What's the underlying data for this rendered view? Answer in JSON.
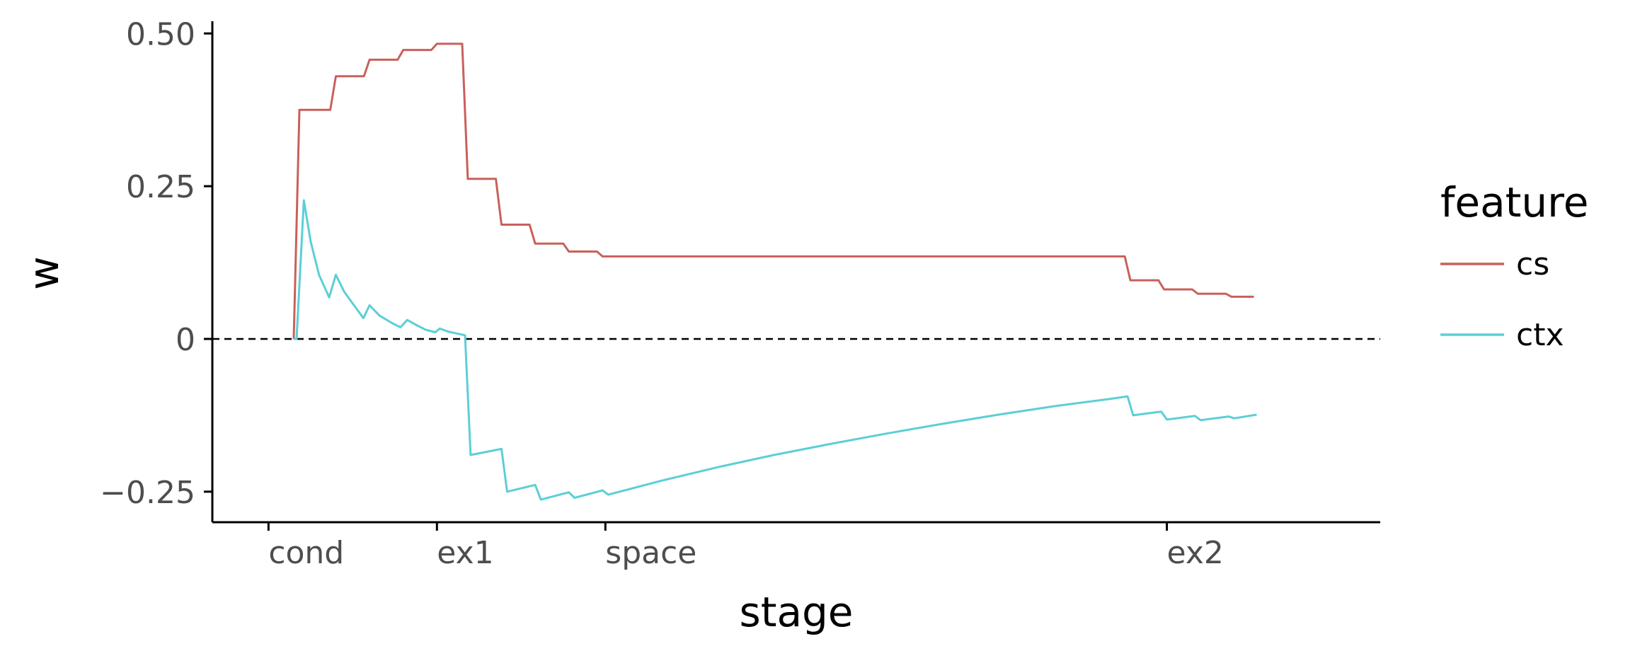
{
  "chart_data": {
    "type": "line",
    "title": "",
    "xlabel": "stage",
    "ylabel": "w",
    "x_ticks": [
      {
        "label": "cond",
        "x": 0
      },
      {
        "label": "ex1",
        "x": 30
      },
      {
        "label": "space",
        "x": 60
      },
      {
        "label": "ex2",
        "x": 160
      }
    ],
    "y_ticks": [
      {
        "label": "0.50",
        "y": 0.5
      },
      {
        "label": "0.25",
        "y": 0.25
      },
      {
        "label": "0",
        "y": 0
      },
      {
        "label": "−0.25",
        "y": -0.25
      }
    ],
    "xlim": [
      -10,
      198
    ],
    "ylim": [
      -0.3,
      0.52
    ],
    "reference_line": {
      "y": 0,
      "style": "dashed"
    },
    "grid": false,
    "legend": {
      "title": "feature",
      "position": "right"
    },
    "series": [
      {
        "name": "cs",
        "color": "#c9605a",
        "points": [
          [
            4.5,
            0
          ],
          [
            5.5,
            0.375
          ],
          [
            11,
            0.375
          ],
          [
            12,
            0.43
          ],
          [
            17,
            0.43
          ],
          [
            18,
            0.457
          ],
          [
            23,
            0.457
          ],
          [
            24,
            0.473
          ],
          [
            29,
            0.473
          ],
          [
            30,
            0.483
          ],
          [
            34.5,
            0.483
          ],
          [
            35.5,
            0.262
          ],
          [
            40.5,
            0.262
          ],
          [
            41.5,
            0.187
          ],
          [
            46.5,
            0.187
          ],
          [
            47.5,
            0.156
          ],
          [
            52.5,
            0.156
          ],
          [
            53.5,
            0.143
          ],
          [
            58.5,
            0.143
          ],
          [
            59.5,
            0.135
          ],
          [
            152.5,
            0.135
          ],
          [
            153.5,
            0.096
          ],
          [
            158.5,
            0.096
          ],
          [
            159.5,
            0.081
          ],
          [
            164.5,
            0.081
          ],
          [
            165.5,
            0.074
          ],
          [
            170.5,
            0.074
          ],
          [
            171.5,
            0.069
          ],
          [
            175.5,
            0.069
          ]
        ]
      },
      {
        "name": "ctx",
        "color": "#5bcfd6",
        "points": [
          [
            4.5,
            0
          ],
          [
            5,
            0
          ],
          [
            6.3,
            0.227
          ],
          [
            7.5,
            0.16
          ],
          [
            9,
            0.105
          ],
          [
            10.8,
            0.068
          ],
          [
            12,
            0.105
          ],
          [
            13.5,
            0.077
          ],
          [
            15,
            0.058
          ],
          [
            16.9,
            0.034
          ],
          [
            18,
            0.055
          ],
          [
            19.8,
            0.038
          ],
          [
            22,
            0.026
          ],
          [
            23.5,
            0.019
          ],
          [
            24.7,
            0.031
          ],
          [
            26.5,
            0.022
          ],
          [
            28,
            0.015
          ],
          [
            29.7,
            0.011
          ],
          [
            30.5,
            0.017
          ],
          [
            32,
            0.012
          ],
          [
            35,
            0.006
          ],
          [
            36,
            -0.19
          ],
          [
            41.5,
            -0.18
          ],
          [
            42.5,
            -0.25
          ],
          [
            47.5,
            -0.239
          ],
          [
            48.5,
            -0.263
          ],
          [
            53.5,
            -0.251
          ],
          [
            54.5,
            -0.26
          ],
          [
            59.5,
            -0.248
          ],
          [
            60.5,
            -0.255
          ],
          [
            70,
            -0.232
          ],
          [
            80,
            -0.21
          ],
          [
            90,
            -0.19
          ],
          [
            100,
            -0.172
          ],
          [
            110,
            -0.155
          ],
          [
            120,
            -0.139
          ],
          [
            130,
            -0.124
          ],
          [
            140,
            -0.11
          ],
          [
            150,
            -0.098
          ],
          [
            153,
            -0.094
          ],
          [
            154,
            -0.125
          ],
          [
            159,
            -0.119
          ],
          [
            160,
            -0.132
          ],
          [
            165,
            -0.126
          ],
          [
            166,
            -0.133
          ],
          [
            171,
            -0.127
          ],
          [
            172,
            -0.13
          ],
          [
            176,
            -0.124
          ]
        ]
      }
    ]
  }
}
